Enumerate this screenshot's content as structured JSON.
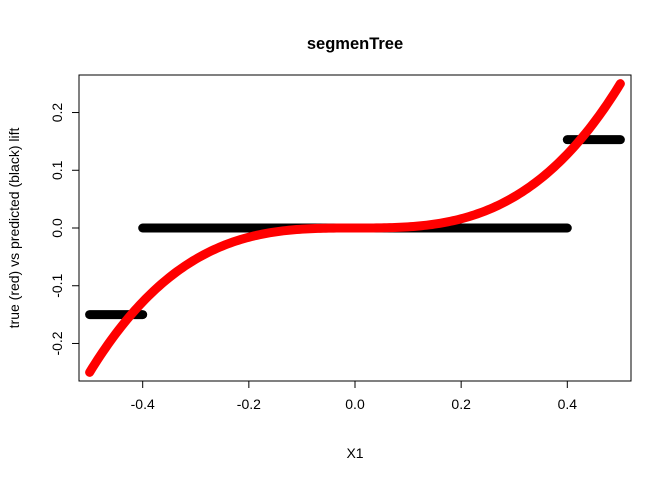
{
  "chart_data": {
    "type": "scatter",
    "title": "segmenTree",
    "xlabel": "X1",
    "ylabel": "true (red) vs predicted (black) lift",
    "xlim": [
      -0.52,
      0.52
    ],
    "ylim": [
      -0.265,
      0.265
    ],
    "x_ticks": [
      -0.4,
      -0.2,
      0.0,
      0.2,
      0.4
    ],
    "x_tick_labels": [
      "-0.4",
      "-0.2",
      "0.0",
      "0.2",
      "0.4"
    ],
    "y_ticks": [
      -0.2,
      -0.1,
      0.0,
      0.1,
      0.2
    ],
    "y_tick_labels": [
      "-0.2",
      "-0.1",
      "0.0",
      "0.1",
      "0.2"
    ],
    "grid": false,
    "legend": "none",
    "series": [
      {
        "color": "#ff0000",
        "curve": "true_lift = 2 * X1^3",
        "x_range": [
          -0.5,
          0.5
        ]
      },
      {
        "color": "#000000",
        "steps": [
          {
            "x_from": -0.5,
            "x_to": -0.4,
            "y": -0.15
          },
          {
            "x_from": -0.4,
            "x_to": 0.4,
            "y": 0.0
          },
          {
            "x_from": 0.4,
            "x_to": 0.5,
            "y": 0.153
          }
        ]
      }
    ]
  },
  "colors": {
    "true": "#ff0000",
    "predicted": "#000000",
    "axis": "#000000"
  }
}
